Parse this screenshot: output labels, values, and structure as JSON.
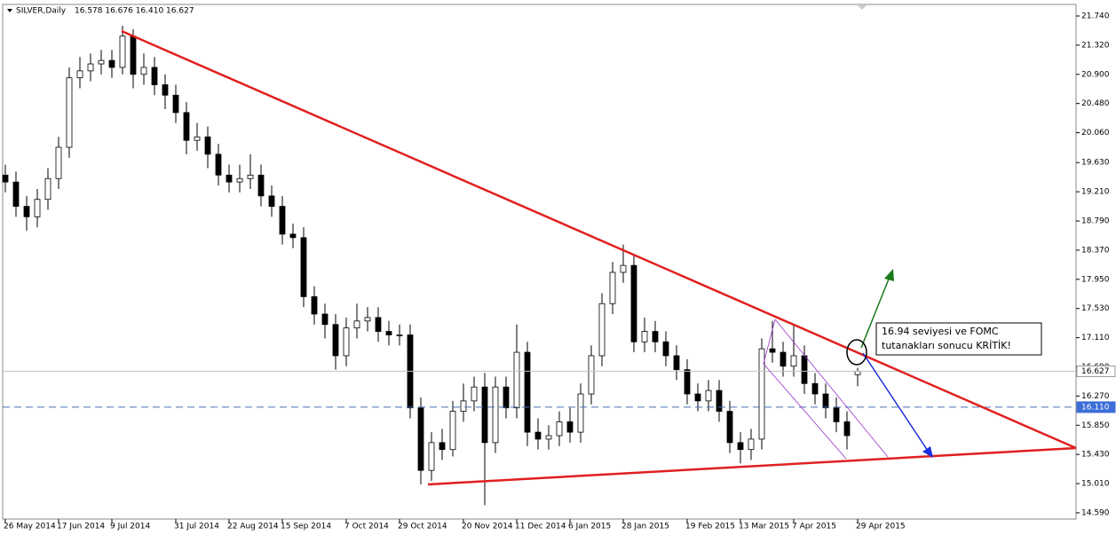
{
  "chart_data": {
    "type": "candlestick",
    "title": "SILVER,Daily",
    "ohlc_text": "16.578 16.676 16.410 16.627",
    "ylim": [
      14.5,
      21.906
    ],
    "yticks": [
      {
        "value": 14.59,
        "label": "14.590"
      },
      {
        "value": 15.01,
        "label": "15.010"
      },
      {
        "value": 15.43,
        "label": "15.430"
      },
      {
        "value": 15.85,
        "label": "15.850"
      },
      {
        "value": 16.27,
        "label": "16.270"
      },
      {
        "value": 16.69,
        "label": "16.690"
      },
      {
        "value": 17.11,
        "label": "17.110"
      },
      {
        "value": 17.53,
        "label": "17.530"
      },
      {
        "value": 17.95,
        "label": "17.950"
      },
      {
        "value": 18.37,
        "label": "18.370"
      },
      {
        "value": 18.79,
        "label": "18.790"
      },
      {
        "value": 19.21,
        "label": "19.210"
      },
      {
        "value": 19.63,
        "label": "19.630"
      },
      {
        "value": 20.06,
        "label": "20.060"
      },
      {
        "value": 20.48,
        "label": "20.480"
      },
      {
        "value": 20.9,
        "label": "20.900"
      },
      {
        "value": 21.32,
        "label": "21.320"
      },
      {
        "value": 21.74,
        "label": "21.740"
      }
    ],
    "price_lines": [
      {
        "value": 16.627,
        "label": "16.627",
        "color": "#c0c0c0",
        "label_bg": "#ffffff",
        "label_color": "#000000",
        "dash": false
      },
      {
        "value": 16.11,
        "label": "16.110",
        "color": "#4a6fb0",
        "label_bg": "#3c6ed8",
        "label_color": "#ffffff",
        "dash": true
      }
    ],
    "bull_color": "#ffffff",
    "bear_color": "#000000",
    "candles": {
      "dates": [
        "26 May 2014",
        null,
        null,
        null,
        null,
        "17 Jun 2014",
        null,
        null,
        null,
        null,
        "9 Jul 2014",
        null,
        null,
        null,
        null,
        null,
        "31 Jul 2014",
        null,
        null,
        null,
        null,
        "22 Aug 2014",
        null,
        null,
        null,
        null,
        "15 Sep 2014",
        null,
        null,
        null,
        null,
        null,
        "7 Oct 2014",
        null,
        null,
        null,
        null,
        "29 Oct 2014",
        null,
        null,
        null,
        null,
        null,
        "20 Nov 2014",
        null,
        null,
        null,
        null,
        "11 Dec 2014",
        null,
        null,
        null,
        null,
        "6 Jan 2015",
        null,
        null,
        null,
        null,
        "28 Jan 2015",
        null,
        null,
        null,
        null,
        null,
        "19 Feb 2015",
        null,
        null,
        null,
        null,
        "13 Mar 2015",
        null,
        null,
        null,
        null,
        "7 Apr 2015",
        null,
        null,
        null,
        null,
        null,
        "29 Apr 2015"
      ],
      "open": [
        19.45,
        19.35,
        19.0,
        18.85,
        19.1,
        19.4,
        19.85,
        20.85,
        20.95,
        21.05,
        21.1,
        21.0,
        21.45,
        20.9,
        21.0,
        20.75,
        20.6,
        20.35,
        19.95,
        20.0,
        19.75,
        19.45,
        19.35,
        19.4,
        19.45,
        19.15,
        19.0,
        18.6,
        18.55,
        17.7,
        17.45,
        17.3,
        16.85,
        17.25,
        17.35,
        17.4,
        17.2,
        17.15,
        17.15,
        16.1,
        15.2,
        15.6,
        15.5,
        16.05,
        16.2,
        16.4,
        15.6,
        16.4,
        16.1,
        16.9,
        15.75,
        15.65,
        15.7,
        15.9,
        15.75,
        16.3,
        16.85,
        17.6,
        18.05,
        18.15,
        17.05,
        17.2,
        17.05,
        16.85,
        16.65,
        16.3,
        16.2,
        16.35,
        16.05,
        15.6,
        15.5,
        15.65,
        16.95,
        16.9,
        16.7,
        16.85,
        16.45,
        16.3,
        16.1,
        15.9,
        16.578
      ],
      "high": [
        19.6,
        19.5,
        19.15,
        19.25,
        19.55,
        20.0,
        21.0,
        21.15,
        21.2,
        21.25,
        21.25,
        21.6,
        21.55,
        21.2,
        21.15,
        20.9,
        20.75,
        20.5,
        20.2,
        20.15,
        19.9,
        19.6,
        19.6,
        19.75,
        19.6,
        19.3,
        19.15,
        18.75,
        18.7,
        17.85,
        17.6,
        17.45,
        17.4,
        17.6,
        17.55,
        17.55,
        17.35,
        17.3,
        17.3,
        16.25,
        15.75,
        15.8,
        16.2,
        16.45,
        16.55,
        16.6,
        16.55,
        16.55,
        17.3,
        17.05,
        15.95,
        15.85,
        16.05,
        16.1,
        16.45,
        17.0,
        17.75,
        18.2,
        18.45,
        18.3,
        17.4,
        17.35,
        17.2,
        17.0,
        16.8,
        16.45,
        16.5,
        16.5,
        16.2,
        15.75,
        15.8,
        17.1,
        17.35,
        17.05,
        17.3,
        17.0,
        16.6,
        16.45,
        16.25,
        16.05,
        16.676
      ],
      "low": [
        19.2,
        18.85,
        18.65,
        18.7,
        18.95,
        19.25,
        19.7,
        20.7,
        20.8,
        20.9,
        20.85,
        20.9,
        20.7,
        20.75,
        20.6,
        20.4,
        20.2,
        19.75,
        19.8,
        19.55,
        19.3,
        19.2,
        19.2,
        19.25,
        19.0,
        18.85,
        18.45,
        18.4,
        17.55,
        17.3,
        17.1,
        16.65,
        16.7,
        17.1,
        17.2,
        17.05,
        17.0,
        17.0,
        15.95,
        15.0,
        15.05,
        15.35,
        15.4,
        15.9,
        16.05,
        14.7,
        15.45,
        15.95,
        15.95,
        15.55,
        15.5,
        15.5,
        15.55,
        15.6,
        15.6,
        16.15,
        16.7,
        17.45,
        17.9,
        16.9,
        16.9,
        16.9,
        16.7,
        16.5,
        16.15,
        16.05,
        16.05,
        15.9,
        15.45,
        15.3,
        15.35,
        15.5,
        16.75,
        16.55,
        16.55,
        16.3,
        16.15,
        15.95,
        15.75,
        15.5,
        16.41
      ],
      "close": [
        19.35,
        19.0,
        18.85,
        19.1,
        19.4,
        19.85,
        20.85,
        20.95,
        21.05,
        21.1,
        21.0,
        21.45,
        20.9,
        21.0,
        20.75,
        20.6,
        20.35,
        19.95,
        20.0,
        19.75,
        19.45,
        19.35,
        19.4,
        19.45,
        19.15,
        19.0,
        18.6,
        18.55,
        17.7,
        17.45,
        17.3,
        16.85,
        17.25,
        17.35,
        17.4,
        17.2,
        17.15,
        17.15,
        16.1,
        15.2,
        15.6,
        15.5,
        16.05,
        16.2,
        16.4,
        15.6,
        16.4,
        16.1,
        16.9,
        15.75,
        15.65,
        15.7,
        15.9,
        15.75,
        16.3,
        16.85,
        17.6,
        18.05,
        18.15,
        17.05,
        17.2,
        17.05,
        16.85,
        16.65,
        16.3,
        16.2,
        16.35,
        16.05,
        15.6,
        15.5,
        15.65,
        16.95,
        16.9,
        16.7,
        16.85,
        16.45,
        16.3,
        16.1,
        15.9,
        15.7,
        16.627
      ]
    },
    "annotation": [
      "16.94 seviyesi ve FOMC",
      "tutanakları sonucu KRİTİK!"
    ]
  }
}
